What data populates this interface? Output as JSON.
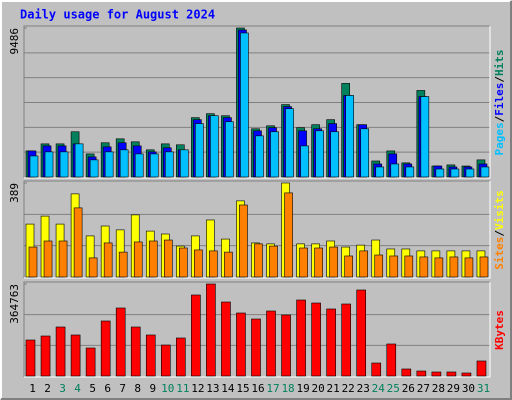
{
  "chart_data": [
    {
      "type": "bar",
      "title": "Daily usage for August 2024",
      "ylim": [
        0,
        9486
      ],
      "yticks": [
        9486
      ],
      "grid": true,
      "legend_position": "right",
      "legend_separator": "/",
      "series": [
        {
          "name": "Hits",
          "color": "#00805c",
          "values": [
            1660,
            2110,
            2110,
            2880,
            1470,
            2180,
            2430,
            2240,
            1730,
            2110,
            2050,
            3780,
            4030,
            3900,
            9486,
            3070,
            3260,
            4610,
            3140,
            3330,
            3650,
            5960,
            3330,
            1020,
            1660,
            900,
            5510,
            700,
            770,
            700,
            1090
          ]
        },
        {
          "name": "Files",
          "color": "#0000ff",
          "values": [
            1660,
            1980,
            1980,
            2110,
            1280,
            1920,
            2180,
            1980,
            1600,
            1860,
            1730,
            3650,
            3900,
            3780,
            9360,
            2940,
            3140,
            4480,
            2940,
            3070,
            3400,
            5190,
            3330,
            830,
            1470,
            830,
            5120,
            700,
            640,
            640,
            830
          ]
        },
        {
          "name": "Pages",
          "color": "#00c0ff",
          "values": [
            1340,
            1600,
            1600,
            2110,
            1090,
            1600,
            1730,
            1470,
            1470,
            1600,
            1730,
            3400,
            3900,
            3520,
            9170,
            2620,
            2880,
            4350,
            1980,
            2940,
            2880,
            5190,
            3070,
            640,
            830,
            640,
            5120,
            510,
            510,
            510,
            640
          ]
        }
      ]
    },
    {
      "type": "bar",
      "ylim": [
        0,
        389
      ],
      "yticks": [
        389
      ],
      "grid": true,
      "legend_position": "right",
      "legend_separator": "/",
      "series": [
        {
          "name": "Visits",
          "color": "#ffff00",
          "values": [
            219,
            252,
            219,
            344,
            170,
            211,
            195,
            257,
            190,
            178,
            128,
            170,
            236,
            157,
            315,
            141,
            137,
            389,
            137,
            137,
            149,
            124,
            132,
            153,
            116,
            116,
            108,
            108,
            108,
            108,
            108
          ]
        },
        {
          "name": "Sites",
          "color": "#ff8000",
          "values": [
            124,
            149,
            149,
            286,
            79,
            141,
            103,
            145,
            149,
            153,
            120,
            112,
            108,
            103,
            298,
            137,
            128,
            348,
            120,
            120,
            124,
            87,
            108,
            91,
            87,
            87,
            83,
            79,
            83,
            79,
            83
          ]
        }
      ]
    },
    {
      "type": "bar",
      "ylim": [
        0,
        364763
      ],
      "yticks": [
        364763
      ],
      "grid": true,
      "legend_position": "right",
      "categories": [
        "1",
        "2",
        "3",
        "4",
        "5",
        "6",
        "7",
        "8",
        "9",
        "10",
        "11",
        "12",
        "13",
        "14",
        "15",
        "16",
        "17",
        "18",
        "19",
        "20",
        "21",
        "22",
        "23",
        "24",
        "25",
        "26",
        "27",
        "28",
        "29",
        "30",
        "31"
      ],
      "category_colors": [
        "#000000",
        "#000000",
        "#00805c",
        "#00805c",
        "#000000",
        "#000000",
        "#000000",
        "#000000",
        "#000000",
        "#00805c",
        "#00805c",
        "#000000",
        "#000000",
        "#000000",
        "#000000",
        "#000000",
        "#00805c",
        "#00805c",
        "#000000",
        "#000000",
        "#000000",
        "#000000",
        "#000000",
        "#00805c",
        "#00805c",
        "#000000",
        "#000000",
        "#000000",
        "#000000",
        "#000000",
        "#00805c"
      ],
      "series": [
        {
          "name": "KBytes",
          "color": "#ff0000",
          "values": [
            142700,
            158600,
            194300,
            162600,
            111000,
            218100,
            269600,
            194300,
            162600,
            122900,
            150700,
            321200,
            364763,
            293400,
            249800,
            226000,
            257700,
            241900,
            301300,
            289400,
            265700,
            285500,
            341000,
            51500,
            126900,
            27800,
            19800,
            15900,
            15900,
            11900,
            59500
          ]
        }
      ]
    }
  ]
}
